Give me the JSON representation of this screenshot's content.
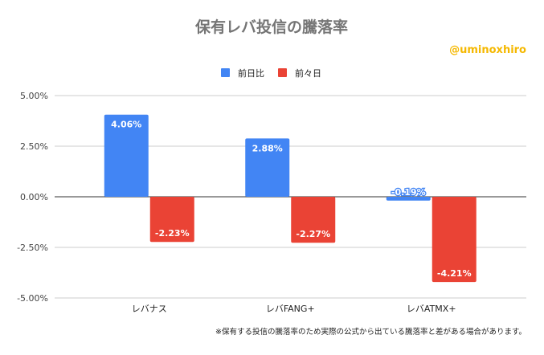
{
  "chart_data": {
    "type": "bar",
    "title": "保有レバ投信の騰落率",
    "credit": "@uminoxhiro",
    "categories": [
      "レバナス",
      "レバFANG+",
      "レバATMX+"
    ],
    "series": [
      {
        "name": "前日比",
        "color": "#4285f4",
        "values": [
          4.06,
          2.88,
          -0.19
        ],
        "labels": [
          "4.06%",
          "2.88%",
          "-0.19%"
        ]
      },
      {
        "name": "前々日",
        "color": "#ea4335",
        "values": [
          -2.23,
          -2.27,
          -4.21
        ],
        "labels": [
          "-2.23%",
          "-2.27%",
          "-4.21%"
        ]
      }
    ],
    "yticks": [
      5,
      2.5,
      0,
      -2.5,
      -5
    ],
    "ytick_labels": [
      "5.00%",
      "2.50%",
      "0.00%",
      "-2.50%",
      "-5.00%"
    ],
    "ylim": [
      -5,
      5
    ],
    "grid": true,
    "legend": "top",
    "note": "※保有する投信の騰落率のため実際の公式から出ている騰落率と差がある場合があります。"
  }
}
